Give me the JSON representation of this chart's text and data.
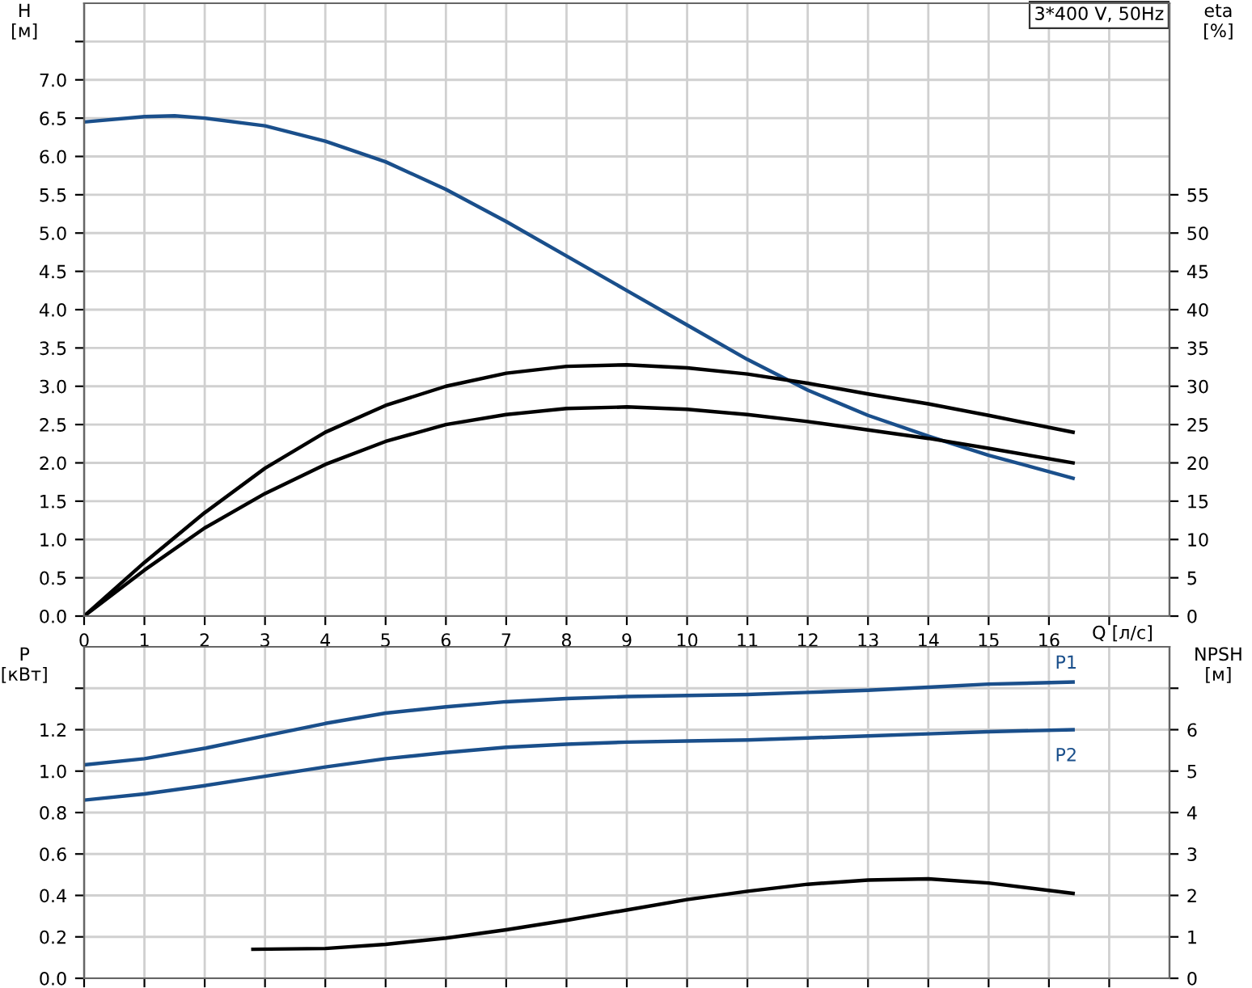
{
  "chart_data": [
    {
      "type": "line",
      "xlabel": "Q [л/с]",
      "ylabel": "H\n[м]",
      "y2label": "eta\n[%]",
      "annotations": [
        "3*400 V, 50Hz"
      ],
      "xlim": [
        0,
        18
      ],
      "xticks": [
        0,
        1,
        2,
        3,
        4,
        5,
        6,
        7,
        8,
        9,
        10,
        11,
        12,
        13,
        14,
        15,
        16,
        {
          "value": 17,
          "label": null
        }
      ],
      "ylim": [
        0,
        8
      ],
      "yticks": [
        {
          "value": 0,
          "label": "0.0"
        },
        {
          "value": 0.5,
          "label": "0.5"
        },
        {
          "value": 1,
          "label": "1.0"
        },
        {
          "value": 1.5,
          "label": "1.5"
        },
        {
          "value": 2,
          "label": "2.0"
        },
        {
          "value": 2.5,
          "label": "2.5"
        },
        {
          "value": 3,
          "label": "3.0"
        },
        {
          "value": 3.5,
          "label": "3.5"
        },
        {
          "value": 4,
          "label": "4.0"
        },
        {
          "value": 4.5,
          "label": "4.5"
        },
        {
          "value": 5,
          "label": "5.0"
        },
        {
          "value": 5.5,
          "label": "5.5"
        },
        {
          "value": 6,
          "label": "6.0"
        },
        {
          "value": 6.5,
          "label": "6.5"
        },
        {
          "value": 7,
          "label": "7.0"
        },
        {
          "value": 7.5,
          "label": null
        }
      ],
      "y2lim": [
        0,
        80
      ],
      "y2ticks": [
        0,
        5,
        10,
        15,
        20,
        25,
        30,
        35,
        40,
        45,
        50,
        55
      ],
      "grid": true,
      "legend": false,
      "marker": "none",
      "line_style": "solid",
      "series": [
        {
          "color": "#1a4f8b",
          "x": [
            0,
            1,
            1.5,
            2,
            3,
            4,
            5,
            6,
            7,
            8,
            9,
            10,
            11,
            12,
            13,
            14,
            15,
            16.4
          ],
          "values": [
            6.45,
            6.52,
            6.53,
            6.5,
            6.4,
            6.2,
            5.93,
            5.57,
            5.15,
            4.7,
            4.25,
            3.8,
            3.35,
            2.95,
            2.62,
            2.35,
            2.1,
            1.8
          ]
        },
        {
          "color": "#000000",
          "axis": "y2",
          "x": [
            0,
            1,
            2,
            3,
            4,
            5,
            6,
            7,
            8,
            9,
            10,
            11,
            12,
            13,
            14,
            15,
            16.4
          ],
          "values": [
            0,
            7,
            13.5,
            19.3,
            24,
            27.5,
            30,
            31.7,
            32.6,
            32.8,
            32.4,
            31.6,
            30.4,
            29,
            27.7,
            26.2,
            24
          ]
        },
        {
          "color": "#000000",
          "axis": "y2",
          "x": [
            0,
            1,
            2,
            3,
            4,
            5,
            6,
            7,
            8,
            9,
            10,
            11,
            12,
            13,
            14,
            15,
            16.4
          ],
          "values": [
            0,
            6,
            11.5,
            16,
            19.8,
            22.8,
            25,
            26.3,
            27.1,
            27.3,
            27,
            26.3,
            25.4,
            24.3,
            23.2,
            21.9,
            20
          ]
        }
      ]
    },
    {
      "type": "line",
      "ylabel": "P\n[кВт]",
      "y2label": "NPSH\n[м]",
      "tick_labels": "y",
      "xlim": [
        0,
        18
      ],
      "xticks": [
        0,
        1,
        2,
        3,
        4,
        5,
        6,
        7,
        8,
        9,
        10,
        11,
        12,
        13,
        14,
        15,
        16,
        17
      ],
      "ylim": [
        0,
        1.6
      ],
      "yticks": [
        {
          "value": 0,
          "label": "0.0"
        },
        {
          "value": 0.2,
          "label": "0.2"
        },
        {
          "value": 0.4,
          "label": "0.4"
        },
        {
          "value": 0.6,
          "label": "0.6"
        },
        {
          "value": 0.8,
          "label": "0.8"
        },
        {
          "value": 1,
          "label": "1.0"
        },
        {
          "value": 1.2,
          "label": "1.2"
        },
        {
          "value": 1.4,
          "label": null
        }
      ],
      "y2lim": [
        0,
        8
      ],
      "y2ticks": [
        0,
        1,
        2,
        3,
        4,
        5,
        6,
        {
          "value": 7,
          "label": null
        }
      ],
      "grid": true,
      "legend": false,
      "marker": "none",
      "line_style": "solid",
      "series": [
        {
          "name": "P1",
          "color": "#1a4f8b",
          "x": [
            0,
            1,
            2,
            3,
            4,
            5,
            6,
            7,
            8,
            9,
            10,
            11,
            12,
            13,
            14,
            15,
            16.4
          ],
          "values": [
            1.03,
            1.06,
            1.11,
            1.17,
            1.23,
            1.28,
            1.31,
            1.335,
            1.35,
            1.36,
            1.365,
            1.37,
            1.38,
            1.39,
            1.405,
            1.42,
            1.43
          ]
        },
        {
          "name": "P2",
          "color": "#1a4f8b",
          "x": [
            0,
            1,
            2,
            3,
            4,
            5,
            6,
            7,
            8,
            9,
            10,
            11,
            12,
            13,
            14,
            15,
            16.4
          ],
          "values": [
            0.86,
            0.89,
            0.93,
            0.975,
            1.02,
            1.06,
            1.09,
            1.115,
            1.13,
            1.14,
            1.145,
            1.15,
            1.16,
            1.17,
            1.18,
            1.19,
            1.2
          ]
        },
        {
          "color": "#000000",
          "axis": "y2",
          "x": [
            2.8,
            4,
            5,
            6,
            7,
            8,
            9,
            10,
            11,
            12,
            13,
            14,
            15,
            16.4
          ],
          "values": [
            0.7,
            0.72,
            0.82,
            0.97,
            1.17,
            1.4,
            1.65,
            1.9,
            2.1,
            2.27,
            2.37,
            2.4,
            2.3,
            2.05
          ]
        }
      ]
    }
  ]
}
